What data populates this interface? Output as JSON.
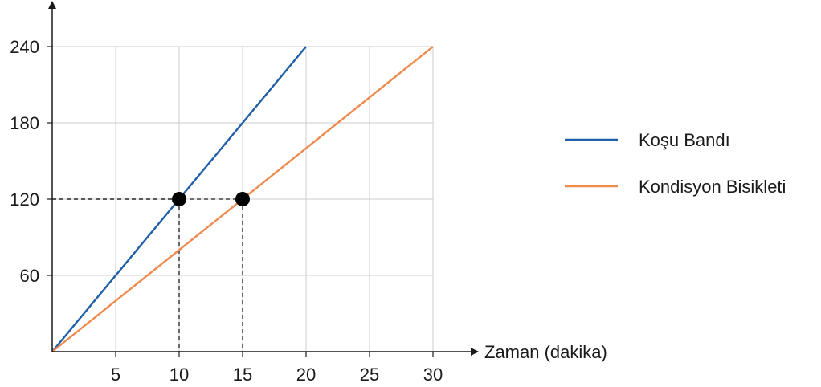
{
  "chart_data": {
    "type": "line",
    "xlabel": "Zaman (dakika)",
    "ylabel": "",
    "xlim": [
      0,
      30
    ],
    "ylim": [
      0,
      240
    ],
    "x_ticks": [
      5,
      10,
      15,
      20,
      25,
      30
    ],
    "y_ticks": [
      60,
      120,
      180,
      240
    ],
    "x_tick_labels": [
      "5",
      "10",
      "15",
      "20",
      "25",
      "30"
    ],
    "y_tick_labels": [
      "60",
      "120",
      "180",
      "240"
    ],
    "grid": true,
    "legend_position": "right",
    "series": [
      {
        "name": "Koşu Bandı",
        "color": "#1f5fa8",
        "x": [
          0,
          20
        ],
        "y": [
          0,
          240
        ]
      },
      {
        "name": "Kondisyon Bisikleti",
        "color": "#ee8a4e",
        "x": [
          0,
          30
        ],
        "y": [
          0,
          240
        ]
      }
    ],
    "highlight_points": [
      {
        "x": 10,
        "y": 120
      },
      {
        "x": 15,
        "y": 120
      }
    ]
  }
}
